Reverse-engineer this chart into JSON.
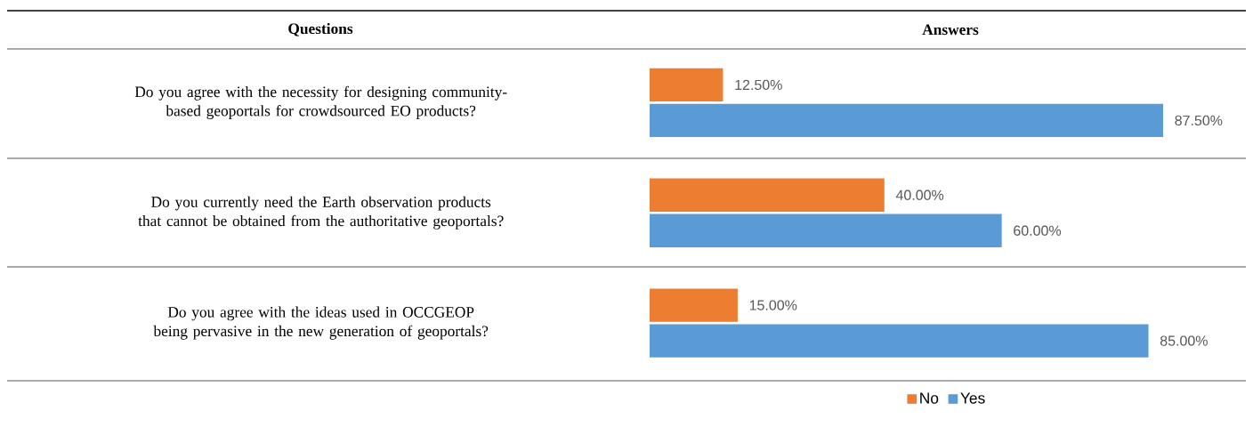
{
  "chart_data": {
    "type": "bar",
    "orientation": "horizontal",
    "categories": [
      "Do you agree with the necessity for designing community-based geoportals for crowdsourced EO products?",
      "Do you currently need the Earth observation products that cannot be obtained from the authoritative geoportals?",
      "Do you agree with the ideas used in OCCGEOP being pervasive in the new generation of geoportals?"
    ],
    "series": [
      {
        "name": "No",
        "color": "#ed7d31",
        "values": [
          12.5,
          40,
          15
        ],
        "value_labels": [
          "12.50%",
          "40.00%",
          "15.00%"
        ]
      },
      {
        "name": "Yes",
        "color": "#5b9bd5",
        "values": [
          87.5,
          60,
          85
        ],
        "value_labels": [
          "87.50%",
          "60.00%",
          "85.00%"
        ]
      }
    ],
    "annotations": [
      "Questions",
      "Answers"
    ],
    "legend": "bottom"
  }
}
